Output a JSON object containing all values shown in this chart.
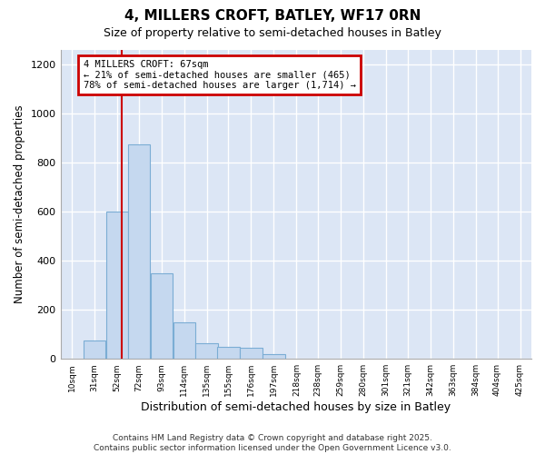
{
  "title": "4, MILLERS CROFT, BATLEY, WF17 0RN",
  "subtitle": "Size of property relative to semi-detached houses in Batley",
  "xlabel": "Distribution of semi-detached houses by size in Batley",
  "ylabel": "Number of semi-detached properties",
  "property_size": 67,
  "property_label": "4 MILLERS CROFT: 67sqm",
  "pct_smaller": 21,
  "pct_larger": 78,
  "n_smaller": 465,
  "n_larger": 1714,
  "bins_left": [
    10,
    31,
    52,
    72,
    93,
    114,
    135,
    155,
    176,
    197,
    218,
    238,
    259,
    280,
    301,
    321,
    342,
    363,
    384,
    404,
    425
  ],
  "bin_width": 21,
  "bin_labels": [
    "10sqm",
    "31sqm",
    "52sqm",
    "72sqm",
    "93sqm",
    "114sqm",
    "135sqm",
    "155sqm",
    "176sqm",
    "197sqm",
    "218sqm",
    "238sqm",
    "259sqm",
    "280sqm",
    "301sqm",
    "321sqm",
    "342sqm",
    "363sqm",
    "384sqm",
    "404sqm",
    "425sqm"
  ],
  "counts": [
    0,
    75,
    600,
    875,
    350,
    150,
    65,
    50,
    45,
    20,
    0,
    0,
    0,
    0,
    0,
    0,
    0,
    0,
    0,
    0,
    0
  ],
  "bar_color": "#c5d8ef",
  "bar_edge_color": "#7badd4",
  "vline_color": "#cc0000",
  "annotation_box_color": "#cc0000",
  "background_color": "#dce6f5",
  "ylim": [
    0,
    1260
  ],
  "yticks": [
    0,
    200,
    400,
    600,
    800,
    1000,
    1200
  ],
  "footer": "Contains HM Land Registry data © Crown copyright and database right 2025.\nContains public sector information licensed under the Open Government Licence v3.0."
}
